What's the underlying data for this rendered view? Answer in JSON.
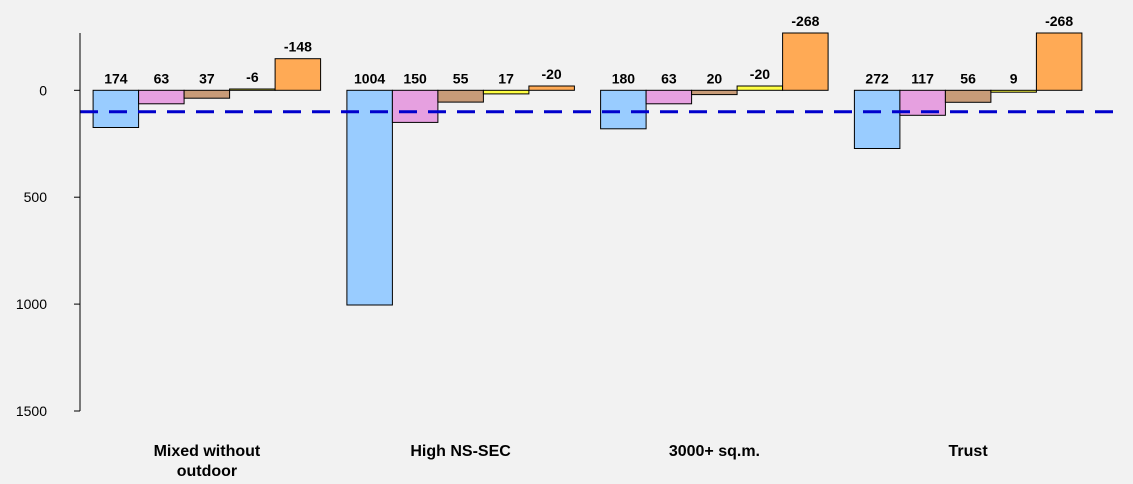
{
  "chart_data": {
    "type": "bar",
    "title": "",
    "xlabel": "",
    "ylabel": "",
    "y_axis": {
      "inverted": true,
      "ylim": [
        -268,
        1500
      ],
      "ticks": [
        0,
        500,
        1000,
        1500
      ],
      "tick_labels": [
        "0",
        "500",
        "1000",
        "1500"
      ]
    },
    "categories": [
      {
        "lines": [
          "Mixed without",
          "outdoor"
        ]
      },
      {
        "lines": [
          "High NS-SEC"
        ]
      },
      {
        "lines": [
          "3000+ sq.m."
        ]
      },
      {
        "lines": [
          "Trust"
        ]
      }
    ],
    "series": [
      {
        "color": "#99ccff",
        "values": [
          174,
          1004,
          180,
          272
        ]
      },
      {
        "color": "#e6a0e0",
        "values": [
          63,
          150,
          63,
          117
        ]
      },
      {
        "color": "#c89b78",
        "values": [
          37,
          55,
          20,
          56
        ]
      },
      {
        "color": "#ffff44",
        "values": [
          -6,
          17,
          -20,
          9
        ]
      },
      {
        "color": "#ffaa55",
        "values": [
          -148,
          -20,
          -268,
          -268
        ]
      }
    ],
    "data_labels": [
      [
        "174",
        "1004",
        "180",
        "272"
      ],
      [
        "63",
        "150",
        "63",
        "117"
      ],
      [
        "37",
        "55",
        "20",
        "56"
      ],
      [
        "-6",
        "17",
        "-20",
        "9"
      ],
      [
        "-148",
        "-20",
        "-268",
        "-268"
      ]
    ],
    "reference_line": {
      "value": 100,
      "color": "#0000cc",
      "style": "dashed"
    },
    "grid": false,
    "legend": "none"
  }
}
